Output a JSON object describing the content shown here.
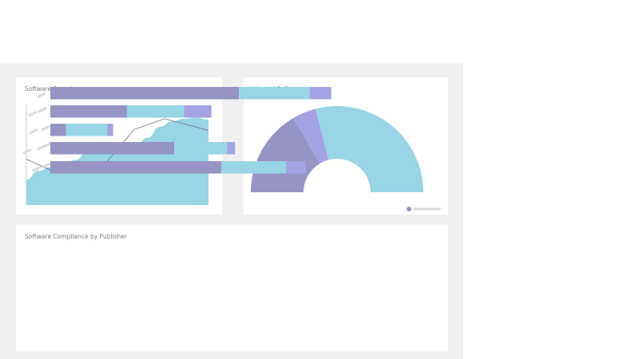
{
  "colors": {
    "purple": "#9594c4",
    "cyan": "#98d5e5",
    "lavender": "#a3a3e3",
    "line": "#6c6d8e",
    "placeholder": "#dadada",
    "legend_dot": "#9594c4"
  },
  "cards": {
    "spend": {
      "title": "Software Spend"
    },
    "unused": {
      "title": "Unused Software",
      "legend": {
        "icon": "circle-dot",
        "label_redacted": true
      }
    },
    "compliance": {
      "title": "Software Compliance by Publisher"
    }
  },
  "chart_data": [
    {
      "type": "area",
      "title": "Software Spend",
      "axis_labels_shown": false,
      "series": [
        {
          "kind": "area",
          "values": [
            28,
            38,
            42,
            45,
            50,
            58,
            63,
            62,
            58,
            66,
            75,
            87,
            93,
            96,
            97,
            95
          ]
        },
        {
          "kind": "line",
          "values": [
            51,
            37,
            41,
            84,
            96,
            83
          ]
        }
      ],
      "ylim": [
        0,
        110
      ]
    },
    {
      "type": "pie",
      "variant": "semi-donut",
      "title": "Unused Software",
      "slices": [
        {
          "value": 33,
          "color": "#9594c4"
        },
        {
          "value": 9,
          "color": "#a3a3e3"
        },
        {
          "value": 58,
          "color": "#98d5e5"
        }
      ]
    },
    {
      "type": "bar",
      "orientation": "horizontal",
      "stacked": true,
      "title": "Software Compliance by Publisher",
      "category_labels_redacted": true,
      "xlim": [
        0,
        100
      ],
      "rows": [
        {
          "segments": [
            48,
            18,
            5.5
          ]
        },
        {
          "segments": [
            19.5,
            14.5,
            7
          ]
        },
        {
          "segments": [
            4,
            10.5,
            1.5
          ]
        },
        {
          "segments": [
            31.5,
            13.5,
            2
          ]
        },
        {
          "segments": [
            43.5,
            16.5,
            5
          ]
        }
      ]
    }
  ]
}
